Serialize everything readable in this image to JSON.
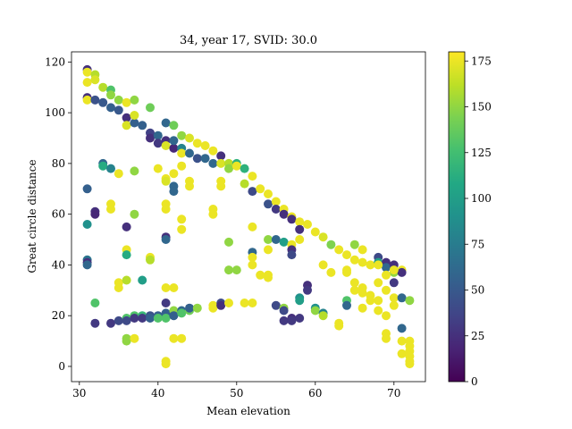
{
  "chart_data": {
    "type": "scatter",
    "title": "34, year 17, SVID: 30.0",
    "xlabel": "Mean elevation",
    "ylabel": "Great circle distance",
    "xlim": [
      29,
      74
    ],
    "ylim": [
      -6,
      124
    ],
    "x_ticks": [
      30,
      40,
      50,
      60,
      70
    ],
    "y_ticks": [
      0,
      20,
      40,
      60,
      80,
      100,
      120
    ],
    "grid": false,
    "colormap": "viridis",
    "colorbar": {
      "range": [
        0,
        180
      ],
      "ticks": [
        0,
        25,
        50,
        75,
        100,
        125,
        150,
        175
      ]
    },
    "points": [
      [
        31,
        117,
        25
      ],
      [
        31,
        116,
        175
      ],
      [
        31,
        112,
        175
      ],
      [
        31,
        106,
        25
      ],
      [
        31,
        105,
        175
      ],
      [
        32,
        115,
        160
      ],
      [
        32,
        113,
        170
      ],
      [
        32,
        105,
        45
      ],
      [
        33,
        110,
        160
      ],
      [
        33,
        104,
        50
      ],
      [
        34,
        109,
        130
      ],
      [
        34,
        107,
        150
      ],
      [
        34,
        102,
        55
      ],
      [
        35,
        105,
        150
      ],
      [
        35,
        101,
        50
      ],
      [
        36,
        104,
        175
      ],
      [
        36,
        98,
        25
      ],
      [
        36,
        95,
        170
      ],
      [
        37,
        105,
        150
      ],
      [
        37,
        96,
        55
      ],
      [
        37,
        99,
        170
      ],
      [
        38,
        95,
        55
      ],
      [
        39,
        102,
        140
      ],
      [
        39,
        92,
        35
      ],
      [
        39,
        90,
        25
      ],
      [
        40,
        91,
        60
      ],
      [
        40,
        88,
        30
      ],
      [
        41,
        96,
        60
      ],
      [
        41,
        89,
        25
      ],
      [
        41,
        87,
        170
      ],
      [
        42,
        95,
        140
      ],
      [
        42,
        86,
        20
      ],
      [
        42,
        89,
        60
      ],
      [
        43,
        91,
        150
      ],
      [
        43,
        86,
        80
      ],
      [
        43,
        84,
        175
      ],
      [
        44,
        90,
        170
      ],
      [
        44,
        84,
        60
      ],
      [
        45,
        88,
        175
      ],
      [
        45,
        82,
        45
      ],
      [
        46,
        87,
        175
      ],
      [
        46,
        82,
        60
      ],
      [
        47,
        85,
        175
      ],
      [
        47,
        80,
        60
      ],
      [
        48,
        83,
        25
      ],
      [
        48,
        80,
        170
      ],
      [
        49,
        80,
        160
      ],
      [
        49,
        78,
        150
      ],
      [
        50,
        80,
        115
      ],
      [
        50,
        79,
        175
      ],
      [
        51,
        78,
        115
      ],
      [
        51,
        72,
        160
      ],
      [
        52,
        75,
        175
      ],
      [
        52,
        69,
        40
      ],
      [
        53,
        70,
        175
      ],
      [
        54,
        68,
        175
      ],
      [
        54,
        64,
        45
      ],
      [
        55,
        65,
        175
      ],
      [
        55,
        62,
        30
      ],
      [
        56,
        62,
        175
      ],
      [
        56,
        60,
        25
      ],
      [
        57,
        59,
        175
      ],
      [
        57,
        58,
        25
      ],
      [
        58,
        57,
        175
      ],
      [
        58,
        54,
        25
      ],
      [
        59,
        56,
        175
      ],
      [
        60,
        53,
        175
      ],
      [
        61,
        51,
        170
      ],
      [
        62,
        48,
        145
      ],
      [
        63,
        46,
        175
      ],
      [
        64,
        44,
        175
      ],
      [
        65,
        42,
        175
      ],
      [
        66,
        41,
        175
      ],
      [
        67,
        40,
        175
      ],
      [
        68,
        43,
        40
      ],
      [
        68,
        41,
        100
      ],
      [
        69,
        41,
        25
      ],
      [
        69,
        39,
        60
      ],
      [
        70,
        40,
        25
      ],
      [
        70,
        37,
        150
      ],
      [
        71,
        38,
        175
      ],
      [
        71,
        37,
        25
      ],
      [
        31,
        70,
        55
      ],
      [
        31,
        56,
        90
      ],
      [
        31,
        42,
        70
      ],
      [
        31,
        41,
        25
      ],
      [
        31,
        40,
        60
      ],
      [
        32,
        61,
        25
      ],
      [
        32,
        60,
        20
      ],
      [
        32,
        25,
        130
      ],
      [
        32,
        17,
        30
      ],
      [
        33,
        80,
        60
      ],
      [
        33,
        79,
        110
      ],
      [
        34,
        78,
        80
      ],
      [
        34,
        64,
        175
      ],
      [
        34,
        62,
        175
      ],
      [
        34,
        17,
        30
      ],
      [
        35,
        76,
        175
      ],
      [
        35,
        33,
        175
      ],
      [
        35,
        31,
        175
      ],
      [
        35,
        18,
        40
      ],
      [
        36,
        46,
        175
      ],
      [
        36,
        44,
        110
      ],
      [
        36,
        55,
        25
      ],
      [
        36,
        34,
        160
      ],
      [
        36,
        19,
        130
      ],
      [
        36,
        18,
        40
      ],
      [
        36,
        11,
        150
      ],
      [
        36,
        10,
        150
      ],
      [
        37,
        77,
        150
      ],
      [
        37,
        60,
        150
      ],
      [
        37,
        20,
        130
      ],
      [
        37,
        19,
        30
      ],
      [
        37,
        11,
        175
      ],
      [
        38,
        34,
        100
      ],
      [
        38,
        20,
        120
      ],
      [
        38,
        19,
        30
      ],
      [
        39,
        43,
        175
      ],
      [
        39,
        42,
        160
      ],
      [
        39,
        20,
        45
      ],
      [
        39,
        19,
        55
      ],
      [
        40,
        78,
        175
      ],
      [
        40,
        20,
        55
      ],
      [
        40,
        19,
        130
      ],
      [
        41,
        74,
        175
      ],
      [
        41,
        73,
        170
      ],
      [
        41,
        64,
        175
      ],
      [
        41,
        62,
        175
      ],
      [
        41,
        51,
        25
      ],
      [
        41,
        50,
        60
      ],
      [
        41,
        31,
        175
      ],
      [
        41,
        25,
        30
      ],
      [
        41,
        21,
        55
      ],
      [
        41,
        19,
        130
      ],
      [
        41,
        2,
        175
      ],
      [
        41,
        1,
        175
      ],
      [
        42,
        76,
        175
      ],
      [
        42,
        71,
        60
      ],
      [
        42,
        69,
        60
      ],
      [
        42,
        31,
        175
      ],
      [
        42,
        22,
        150
      ],
      [
        42,
        20,
        55
      ],
      [
        42,
        11,
        175
      ],
      [
        43,
        79,
        175
      ],
      [
        43,
        58,
        175
      ],
      [
        43,
        54,
        175
      ],
      [
        43,
        22,
        60
      ],
      [
        43,
        21,
        130
      ],
      [
        43,
        11,
        175
      ],
      [
        44,
        73,
        175
      ],
      [
        44,
        71,
        175
      ],
      [
        44,
        22,
        140
      ],
      [
        44,
        23,
        55
      ],
      [
        45,
        23,
        150
      ],
      [
        47,
        62,
        175
      ],
      [
        47,
        60,
        175
      ],
      [
        47,
        24,
        175
      ],
      [
        47,
        23,
        175
      ],
      [
        48,
        73,
        175
      ],
      [
        48,
        71,
        175
      ],
      [
        48,
        25,
        40
      ],
      [
        48,
        24,
        25
      ],
      [
        49,
        49,
        150
      ],
      [
        49,
        38,
        150
      ],
      [
        49,
        25,
        175
      ],
      [
        50,
        38,
        150
      ],
      [
        51,
        25,
        175
      ],
      [
        52,
        55,
        175
      ],
      [
        52,
        45,
        60
      ],
      [
        52,
        43,
        175
      ],
      [
        52,
        40,
        175
      ],
      [
        52,
        25,
        175
      ],
      [
        53,
        36,
        175
      ],
      [
        54,
        50,
        150
      ],
      [
        54,
        46,
        175
      ],
      [
        54,
        36,
        175
      ],
      [
        54,
        35,
        175
      ],
      [
        55,
        50,
        60
      ],
      [
        55,
        24,
        40
      ],
      [
        56,
        49,
        100
      ],
      [
        56,
        23,
        150
      ],
      [
        56,
        22,
        40
      ],
      [
        56,
        18,
        30
      ],
      [
        57,
        48,
        175
      ],
      [
        57,
        46,
        25
      ],
      [
        57,
        44,
        40
      ],
      [
        57,
        19,
        25
      ],
      [
        57,
        18,
        30
      ],
      [
        58,
        50,
        175
      ],
      [
        58,
        27,
        90
      ],
      [
        58,
        26,
        100
      ],
      [
        58,
        19,
        30
      ],
      [
        59,
        32,
        25
      ],
      [
        59,
        30,
        30
      ],
      [
        60,
        23,
        90
      ],
      [
        60,
        22,
        150
      ],
      [
        61,
        40,
        175
      ],
      [
        61,
        21,
        80
      ],
      [
        61,
        20,
        160
      ],
      [
        62,
        37,
        175
      ],
      [
        63,
        17,
        175
      ],
      [
        63,
        16,
        175
      ],
      [
        64,
        38,
        175
      ],
      [
        64,
        37,
        175
      ],
      [
        64,
        26,
        130
      ],
      [
        64,
        24,
        60
      ],
      [
        65,
        48,
        150
      ],
      [
        65,
        33,
        175
      ],
      [
        65,
        30,
        175
      ],
      [
        66,
        46,
        175
      ],
      [
        66,
        31,
        175
      ],
      [
        66,
        29,
        175
      ],
      [
        66,
        23,
        175
      ],
      [
        67,
        28,
        175
      ],
      [
        67,
        26,
        175
      ],
      [
        68,
        40,
        175
      ],
      [
        68,
        33,
        175
      ],
      [
        68,
        26,
        175
      ],
      [
        68,
        22,
        175
      ],
      [
        69,
        36,
        175
      ],
      [
        69,
        30,
        175
      ],
      [
        69,
        20,
        175
      ],
      [
        69,
        13,
        175
      ],
      [
        69,
        11,
        175
      ],
      [
        70,
        38,
        175
      ],
      [
        70,
        33,
        30
      ],
      [
        70,
        27,
        175
      ],
      [
        70,
        24,
        175
      ],
      [
        71,
        27,
        60
      ],
      [
        71,
        15,
        60
      ],
      [
        71,
        10,
        175
      ],
      [
        71,
        5,
        175
      ],
      [
        72,
        26,
        150
      ],
      [
        72,
        10,
        175
      ],
      [
        72,
        8,
        175
      ],
      [
        72,
        6,
        175
      ],
      [
        72,
        4,
        175
      ],
      [
        72,
        2,
        175
      ],
      [
        72,
        1,
        175
      ]
    ]
  }
}
